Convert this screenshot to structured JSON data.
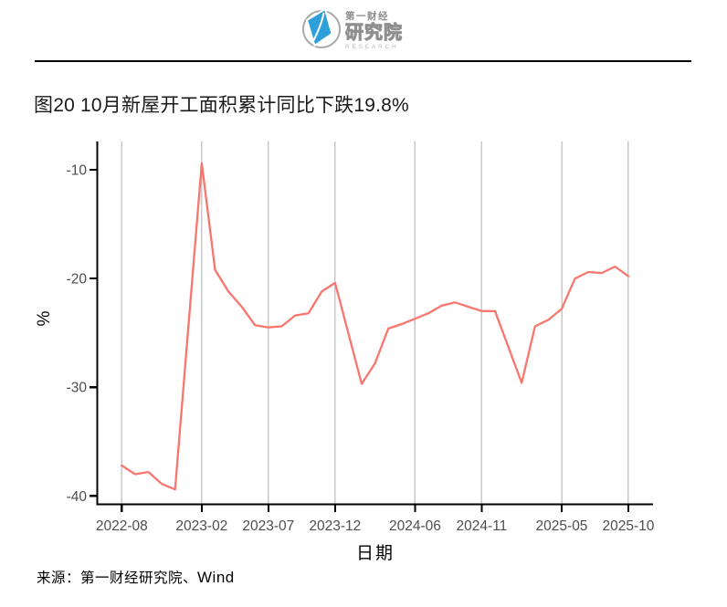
{
  "header": {
    "logo": {
      "brand": "第一财经",
      "institute": "研究院",
      "research": "RESEARCH"
    }
  },
  "title": "图20 10月新屋开工面积累计同比下跌19.8%",
  "source": {
    "prefix": "来源：第一财经研究院、",
    "wind": "Wind"
  },
  "chart_data": {
    "type": "line",
    "title": "图20 10月新屋开工面积累计同比下跌19.8%",
    "xlabel": "日期",
    "ylabel": "%",
    "legend": "none",
    "grid": "vertical-major-only",
    "ylim": [
      -40.8,
      -7.4
    ],
    "y_ticks": [
      -10,
      -20,
      -30,
      -40
    ],
    "x_ticks": [
      "2022-08",
      "2023-02",
      "2023-07",
      "2023-12",
      "2024-06",
      "2024-11",
      "2025-05",
      "2025-10"
    ],
    "x": [
      "2022-08",
      "2022-09",
      "2022-10",
      "2022-11",
      "2022-12",
      "2023-02",
      "2023-03",
      "2023-04",
      "2023-05",
      "2023-06",
      "2023-07",
      "2023-08",
      "2023-09",
      "2023-10",
      "2023-11",
      "2023-12",
      "2024-02",
      "2024-03",
      "2024-04",
      "2024-05",
      "2024-06",
      "2024-07",
      "2024-08",
      "2024-09",
      "2024-10",
      "2024-11",
      "2024-12",
      "2025-02",
      "2025-03",
      "2025-04",
      "2025-05",
      "2025-06",
      "2025-07",
      "2025-08",
      "2025-09",
      "2025-10"
    ],
    "values": [
      -37.2,
      -38.0,
      -37.8,
      -38.9,
      -39.4,
      -9.4,
      -19.2,
      -21.2,
      -22.6,
      -24.3,
      -24.5,
      -24.4,
      -23.4,
      -23.2,
      -21.2,
      -20.4,
      -29.7,
      -27.8,
      -24.6,
      -24.2,
      -23.7,
      -23.2,
      -22.5,
      -22.2,
      -22.6,
      -23.0,
      -23.0,
      -29.6,
      -24.4,
      -23.8,
      -22.8,
      -20.0,
      -19.4,
      -19.5,
      -18.9,
      -19.8
    ],
    "colors": {
      "line": "#F8766D",
      "grid": "#C8C8C8",
      "axis": "#000000",
      "tick_label": "#4D4D4D",
      "logo_blue": "#2E9FD9",
      "logo_grey": "#8F8F8F"
    }
  }
}
